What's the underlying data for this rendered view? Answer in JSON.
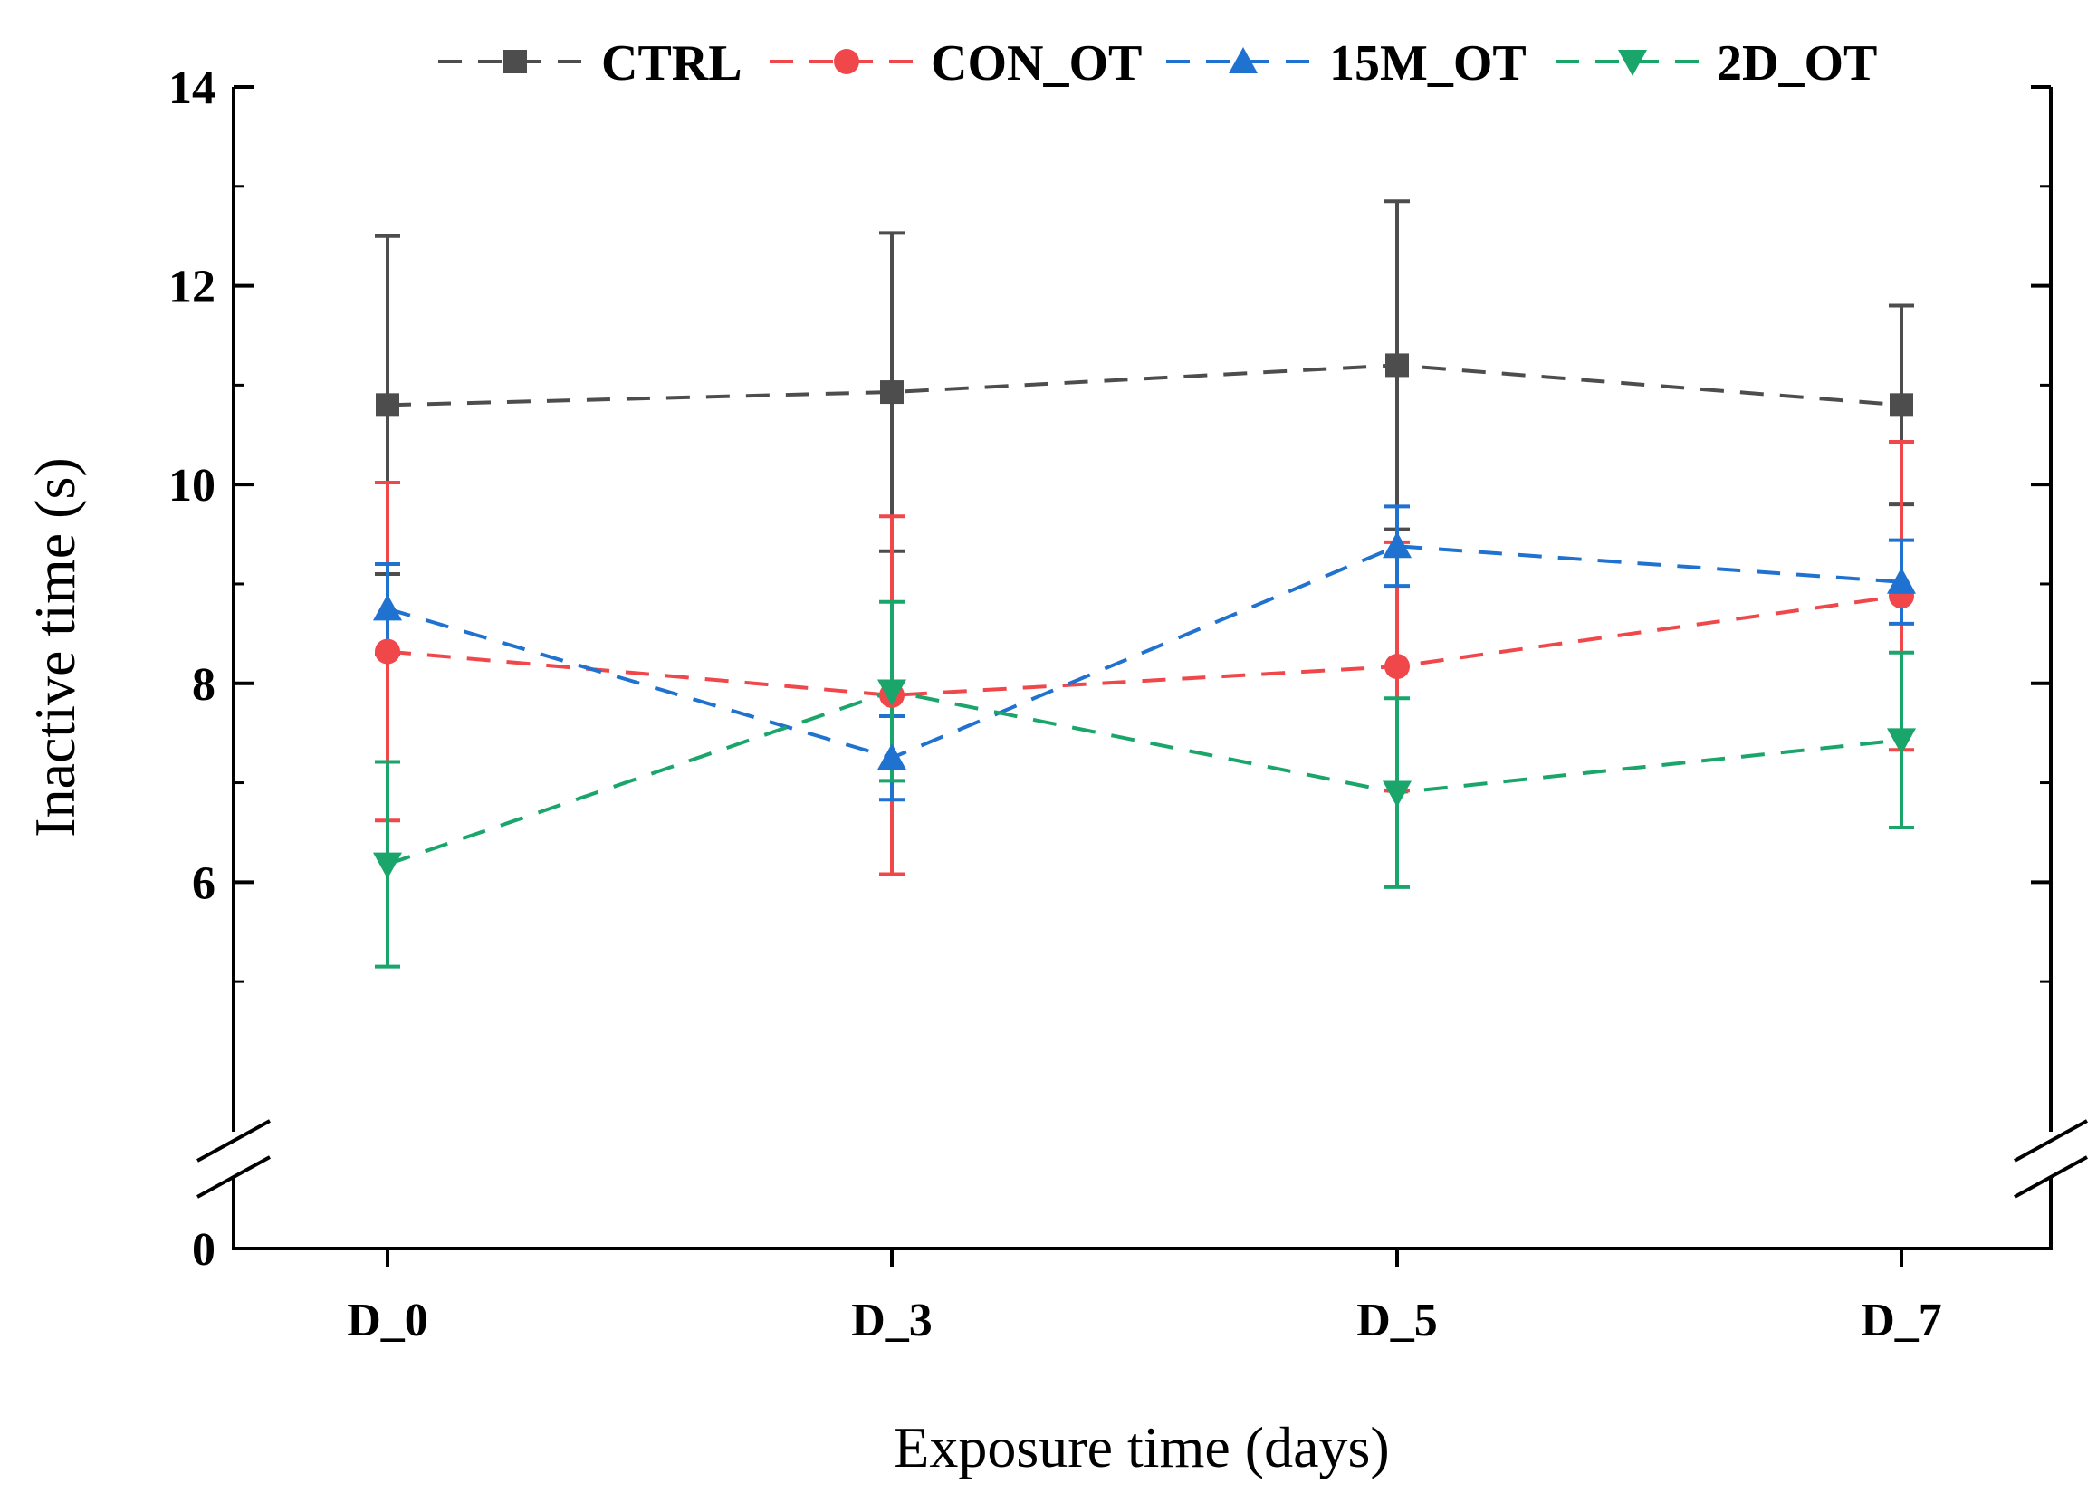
{
  "chart_data": {
    "type": "line",
    "title": "",
    "xlabel": "Exposure time (days)",
    "ylabel": "Inactive time (s)",
    "categories": [
      "D_0",
      "D_3",
      "D_5",
      "D_7"
    ],
    "ylim": [
      0,
      14
    ],
    "axis_break": [
      0,
      4.4
    ],
    "y_ticks": [
      0,
      6,
      8,
      10,
      12,
      14
    ],
    "y_tick_labels": [
      "0",
      "6",
      "8",
      "10",
      "12",
      "14"
    ],
    "legend_position": "top",
    "series": [
      {
        "name": "CTRL",
        "color": "#4d4d4d",
        "marker": "square",
        "values": [
          10.8,
          10.93,
          11.2,
          10.8
        ],
        "errors": [
          1.7,
          1.6,
          1.65,
          1.0
        ]
      },
      {
        "name": "CON_OT",
        "color": "#f0474b",
        "marker": "circle",
        "values": [
          8.32,
          7.88,
          8.17,
          8.88
        ],
        "errors": [
          1.7,
          1.8,
          1.25,
          1.55
        ]
      },
      {
        "name": "15M_OT",
        "color": "#1f72d0",
        "marker": "triangle-up",
        "values": [
          8.75,
          7.25,
          9.38,
          9.02
        ],
        "errors": [
          0.45,
          0.42,
          0.4,
          0.42
        ]
      },
      {
        "name": "2D_OT",
        "color": "#1aa56b",
        "marker": "triangle-down",
        "values": [
          6.18,
          7.92,
          6.9,
          7.43
        ],
        "errors": [
          1.03,
          0.9,
          0.95,
          0.88
        ]
      }
    ]
  }
}
